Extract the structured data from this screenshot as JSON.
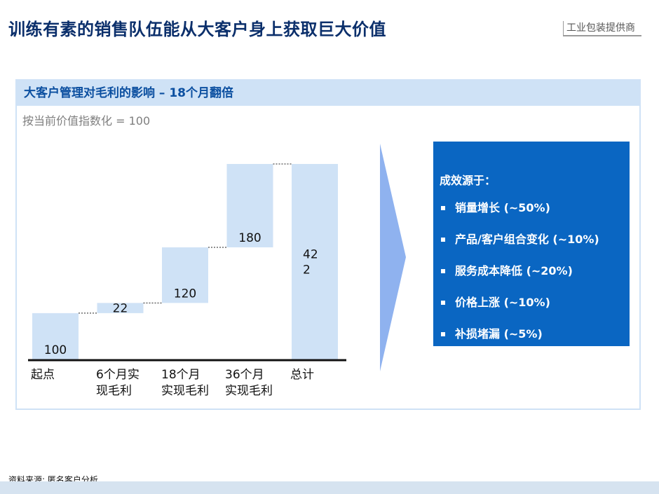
{
  "page": {
    "title": "训练有素的销售队伍能从大客户身上获取巨大价值",
    "tag": "工业包装提供商",
    "source": "资料来源: 匿名客户分析"
  },
  "panel": {
    "header": "大客户管理对毛利的影响 – 18个月翻倍",
    "subtitle": "按当前价值指数化 = 100"
  },
  "chart_data": {
    "type": "bar",
    "subtype": "waterfall",
    "categories": [
      "起点",
      "6个月实\n现毛利",
      "18个月\n实现毛利",
      "36个月\n实现毛利",
      "总计"
    ],
    "steps": [
      {
        "label": "100",
        "start": 0,
        "end": 100,
        "kind": "total"
      },
      {
        "label": "22",
        "start": 100,
        "end": 122,
        "kind": "increase"
      },
      {
        "label": "120",
        "start": 122,
        "end": 242,
        "kind": "increase"
      },
      {
        "label": "180",
        "start": 242,
        "end": 422,
        "kind": "increase"
      },
      {
        "label": "42\n2",
        "start": 0,
        "end": 422,
        "kind": "total"
      }
    ],
    "bar_color": "#cfe2f6",
    "ylim": [
      0,
      422
    ],
    "grid": false,
    "legend": "none"
  },
  "results": {
    "title": "成效源于：",
    "items": [
      "销量增长 (~50%)",
      "产品/客户组合变化 (~10%)",
      "服务成本降低 (~20%)",
      "价格上涨 (~10%)",
      "补损堵漏 (~5%)"
    ],
    "color": "#0a66c2"
  },
  "arrow": {
    "color": "#8fb2ef"
  }
}
